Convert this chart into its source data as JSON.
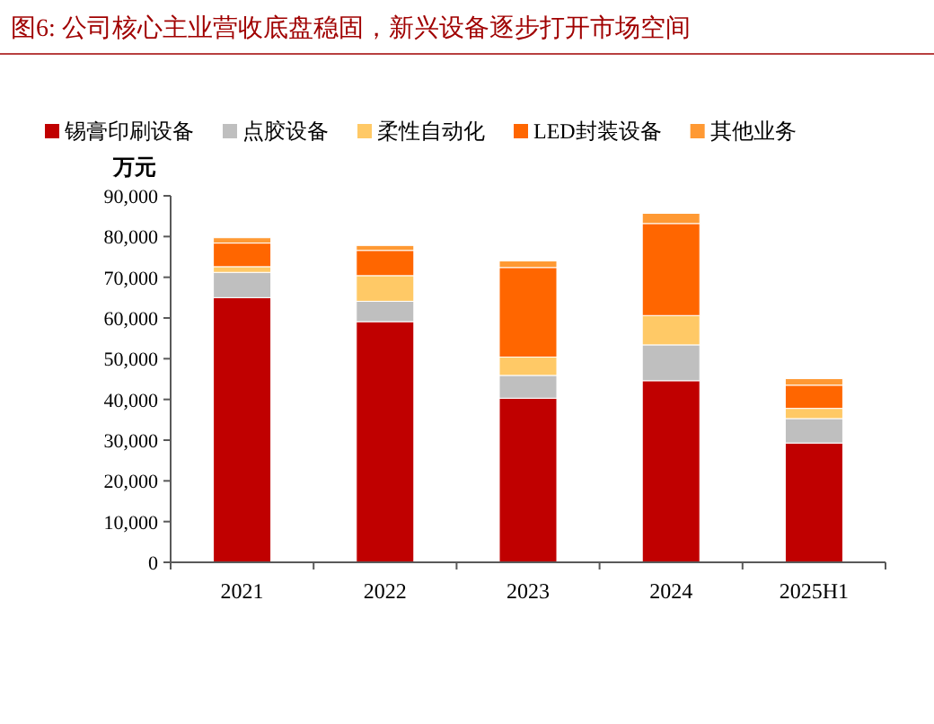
{
  "chart_data": {
    "type": "bar",
    "title": "图6:  公司核心主业营收底盘稳固，新兴设备逐步打开市场空间",
    "ylabel": "万元",
    "stacked": true,
    "legend": "top",
    "grid": false,
    "categories": [
      "2021",
      "2022",
      "2023",
      "2024",
      "2025H1"
    ],
    "series": [
      {
        "name": "锡膏印刷设备",
        "color": "#c00000",
        "values": [
          65000,
          59100,
          40300,
          44600,
          29300
        ]
      },
      {
        "name": "点胶设备",
        "color": "#bfbfbf",
        "values": [
          6200,
          5000,
          5600,
          8800,
          6000
        ]
      },
      {
        "name": "柔性自动化",
        "color": "#ffc966",
        "values": [
          1400,
          6300,
          4500,
          7200,
          2500
        ]
      },
      {
        "name": "LED封装设备",
        "color": "#ff6600",
        "values": [
          5800,
          6200,
          22000,
          22600,
          5700
        ]
      },
      {
        "name": "其他业务",
        "color": "#ff9933",
        "values": [
          1300,
          1200,
          1600,
          2500,
          1600
        ]
      }
    ],
    "ylim": [
      0,
      90000
    ],
    "yticks": [
      {
        "value": 0,
        "label": "0"
      },
      {
        "value": 10000,
        "label": "10,000"
      },
      {
        "value": 20000,
        "label": "20,000"
      },
      {
        "value": 30000,
        "label": "30,000"
      },
      {
        "value": 40000,
        "label": "40,000"
      },
      {
        "value": 50000,
        "label": "50,000"
      },
      {
        "value": 60000,
        "label": "60,000"
      },
      {
        "value": 70000,
        "label": "70,000"
      },
      {
        "value": 80000,
        "label": "80,000"
      },
      {
        "value": 90000,
        "label": "90,000"
      }
    ]
  }
}
